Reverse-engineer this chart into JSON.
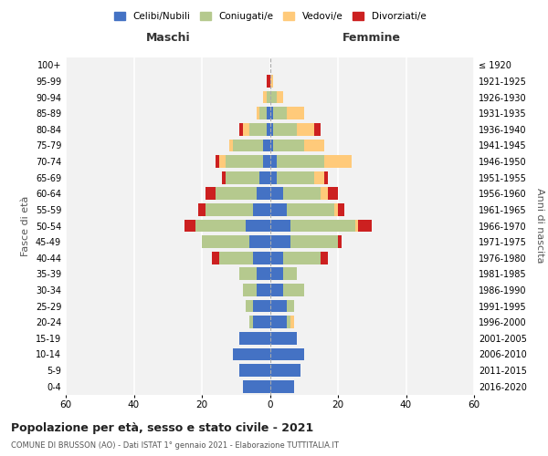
{
  "age_groups": [
    "0-4",
    "5-9",
    "10-14",
    "15-19",
    "20-24",
    "25-29",
    "30-34",
    "35-39",
    "40-44",
    "45-49",
    "50-54",
    "55-59",
    "60-64",
    "65-69",
    "70-74",
    "75-79",
    "80-84",
    "85-89",
    "90-94",
    "95-99",
    "100+"
  ],
  "birth_years": [
    "2016-2020",
    "2011-2015",
    "2006-2010",
    "2001-2005",
    "1996-2000",
    "1991-1995",
    "1986-1990",
    "1981-1985",
    "1976-1980",
    "1971-1975",
    "1966-1970",
    "1961-1965",
    "1956-1960",
    "1951-1955",
    "1946-1950",
    "1941-1945",
    "1936-1940",
    "1931-1935",
    "1926-1930",
    "1921-1925",
    "≤ 1920"
  ],
  "colors": {
    "celibi": "#4472C4",
    "coniugati": "#B5C98E",
    "vedovi": "#FFCA7A",
    "divorziati": "#CC2020"
  },
  "maschi": {
    "celibi": [
      8,
      9,
      11,
      9,
      5,
      5,
      4,
      4,
      5,
      6,
      7,
      5,
      4,
      3,
      2,
      2,
      1,
      1,
      0,
      0,
      0
    ],
    "coniugati": [
      0,
      0,
      0,
      0,
      1,
      2,
      4,
      5,
      10,
      14,
      15,
      14,
      12,
      10,
      11,
      9,
      5,
      2,
      1,
      0,
      0
    ],
    "vedovi": [
      0,
      0,
      0,
      0,
      0,
      0,
      0,
      0,
      0,
      0,
      0,
      0,
      0,
      0,
      2,
      1,
      2,
      1,
      1,
      0,
      0
    ],
    "divorziati": [
      0,
      0,
      0,
      0,
      0,
      0,
      0,
      0,
      2,
      0,
      3,
      2,
      3,
      1,
      1,
      0,
      1,
      0,
      0,
      1,
      0
    ]
  },
  "femmine": {
    "celibi": [
      7,
      9,
      10,
      8,
      5,
      5,
      4,
      4,
      4,
      6,
      6,
      5,
      4,
      2,
      2,
      1,
      1,
      1,
      0,
      0,
      0
    ],
    "coniugati": [
      0,
      0,
      0,
      0,
      1,
      2,
      6,
      4,
      11,
      14,
      19,
      14,
      11,
      11,
      14,
      9,
      7,
      4,
      2,
      0,
      0
    ],
    "vedovi": [
      0,
      0,
      0,
      0,
      1,
      0,
      0,
      0,
      0,
      0,
      1,
      1,
      2,
      3,
      8,
      6,
      5,
      5,
      2,
      1,
      0
    ],
    "divorziati": [
      0,
      0,
      0,
      0,
      0,
      0,
      0,
      0,
      2,
      1,
      4,
      2,
      3,
      1,
      0,
      0,
      2,
      0,
      0,
      0,
      0
    ]
  },
  "xlim": 60,
  "title": "Popolazione per età, sesso e stato civile - 2021",
  "subtitle": "COMUNE DI BRUSSON (AO) - Dati ISTAT 1° gennaio 2021 - Elaborazione TUTTITALIA.IT",
  "ylabel_left": "Fasce di età",
  "ylabel_right": "Anni di nascita",
  "xlabel_maschi": "Maschi",
  "xlabel_femmine": "Femmine",
  "legend_labels": [
    "Celibi/Nubili",
    "Coniugati/e",
    "Vedovi/e",
    "Divorziati/e"
  ],
  "bg_color": "#F2F2F2"
}
